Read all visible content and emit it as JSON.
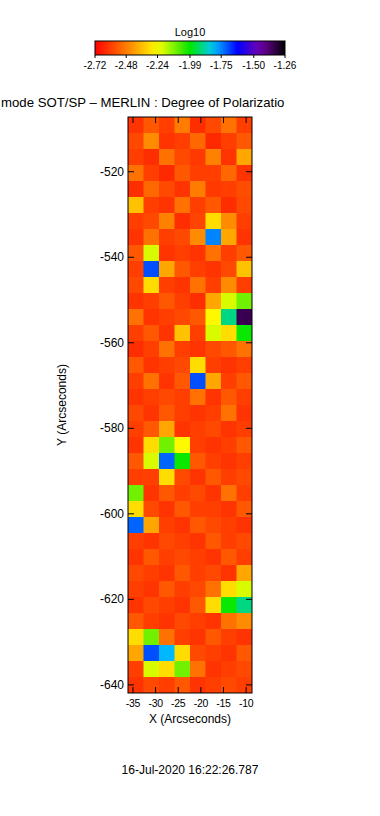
{
  "chart_data": {
    "type": "heatmap",
    "title": "mode SOT/SP – MERLIN : Degree of Polarizatio",
    "xlabel": "X (Arcseconds)",
    "ylabel": "Y (Arcseconds)",
    "annotations": [
      "16-Jul-2020 16:22:26.787"
    ],
    "xlim": [
      -36.1,
      -8.7
    ],
    "ylim": [
      -641.9,
      -507.2
    ],
    "xticks": [
      -35,
      -30,
      -25,
      -20,
      -15,
      -10
    ],
    "yticks": [
      -520,
      -540,
      -560,
      -580,
      -600,
      -620,
      -640
    ],
    "colorbar": {
      "label": "Log10",
      "range": [
        -2.72,
        -1.26
      ],
      "ticks": [
        -2.72,
        -2.48,
        -2.24,
        -1.99,
        -1.75,
        {
          "value": -1.5,
          "label": "-1.50"
        },
        -1.26
      ]
    },
    "z": [
      [
        -2.62,
        -2.55,
        -2.6,
        -2.48,
        -2.63,
        -2.58,
        -2.5,
        -2.6
      ],
      [
        -2.58,
        -2.45,
        -2.62,
        -2.6,
        -2.52,
        -2.64,
        -2.6,
        -2.55
      ],
      [
        -2.6,
        -2.63,
        -2.5,
        -2.58,
        -2.61,
        -2.47,
        -2.62,
        -2.4
      ],
      [
        -2.5,
        -2.6,
        -2.64,
        -2.55,
        -2.6,
        -2.6,
        -2.52,
        -2.62
      ],
      [
        -2.63,
        -2.52,
        -2.58,
        -2.62,
        -2.48,
        -2.61,
        -2.6,
        -2.57
      ],
      [
        -2.35,
        -2.6,
        -2.62,
        -2.5,
        -2.6,
        -2.55,
        -2.63,
        -2.58
      ],
      [
        -2.6,
        -2.58,
        -2.47,
        -2.63,
        -2.59,
        -2.3,
        -2.45,
        -2.6
      ],
      [
        -2.62,
        -2.5,
        -2.6,
        -2.58,
        -2.45,
        -1.75,
        -2.4,
        -2.62
      ],
      [
        -2.55,
        -2.2,
        -2.62,
        -2.6,
        -2.62,
        -2.5,
        -2.6,
        -2.55
      ],
      [
        -2.6,
        -1.7,
        -2.4,
        -2.55,
        -2.6,
        -2.62,
        -2.58,
        -2.35
      ],
      [
        -2.58,
        -2.3,
        -2.6,
        -2.62,
        -2.5,
        -2.6,
        -2.45,
        -2.6
      ],
      [
        -2.62,
        -2.6,
        -2.55,
        -2.6,
        -2.63,
        -2.4,
        -2.2,
        -2.1
      ],
      [
        -2.5,
        -2.62,
        -2.6,
        -2.58,
        -2.55,
        -2.25,
        -1.9,
        -1.35
      ],
      [
        -2.6,
        -2.55,
        -2.62,
        -2.35,
        -2.6,
        -2.2,
        -2.3,
        -2.0
      ],
      [
        -2.63,
        -2.6,
        -2.5,
        -2.6,
        -2.62,
        -2.58,
        -2.55,
        -2.5
      ],
      [
        -2.55,
        -2.62,
        -2.6,
        -2.58,
        -2.3,
        -2.6,
        -2.62,
        -2.6
      ],
      [
        -2.6,
        -2.5,
        -2.62,
        -2.55,
        -1.7,
        -2.4,
        -2.6,
        -2.55
      ],
      [
        -2.62,
        -2.6,
        -2.58,
        -2.6,
        -2.5,
        -2.62,
        -2.55,
        -2.6
      ],
      [
        -2.58,
        -2.62,
        -2.55,
        -2.6,
        -2.62,
        -2.6,
        -2.5,
        -2.62
      ],
      [
        -2.6,
        -2.55,
        -2.4,
        -2.62,
        -2.6,
        -2.58,
        -2.62,
        -2.6
      ],
      [
        -2.62,
        -2.3,
        -2.1,
        -2.25,
        -2.6,
        -2.62,
        -2.6,
        -2.55
      ],
      [
        -2.55,
        -2.2,
        -1.72,
        -2.0,
        -2.55,
        -2.6,
        -2.62,
        -2.6
      ],
      [
        -2.6,
        -2.6,
        -2.3,
        -2.58,
        -2.62,
        -2.55,
        -2.6,
        -2.58
      ],
      [
        -2.1,
        -2.62,
        -2.55,
        -2.6,
        -2.58,
        -2.62,
        -2.5,
        -2.6
      ],
      [
        -2.3,
        -2.58,
        -2.62,
        -2.55,
        -2.6,
        -2.6,
        -2.62,
        -2.55
      ],
      [
        -1.72,
        -2.4,
        -2.6,
        -2.62,
        -2.55,
        -2.58,
        -2.6,
        -2.62
      ],
      [
        -2.6,
        -2.62,
        -2.58,
        -2.6,
        -2.62,
        -2.55,
        -2.6,
        -2.58
      ],
      [
        -2.62,
        -2.55,
        -2.6,
        -2.58,
        -2.6,
        -2.62,
        -2.55,
        -2.6
      ],
      [
        -2.58,
        -2.6,
        -2.62,
        -2.55,
        -2.6,
        -2.58,
        -2.62,
        -2.4
      ],
      [
        -2.6,
        -2.62,
        -2.55,
        -2.6,
        -2.58,
        -2.5,
        -2.3,
        -2.2
      ],
      [
        -2.62,
        -2.58,
        -2.6,
        -2.62,
        -2.55,
        -2.3,
        -2.0,
        -1.9
      ],
      [
        -2.55,
        -2.6,
        -2.62,
        -2.58,
        -2.6,
        -2.62,
        -2.5,
        -2.45
      ],
      [
        -2.3,
        -2.1,
        -2.5,
        -2.6,
        -2.62,
        -2.55,
        -2.6,
        -2.62
      ],
      [
        -2.4,
        -1.7,
        -1.8,
        -2.3,
        -2.58,
        -2.6,
        -2.62,
        -2.55
      ],
      [
        -2.6,
        -2.2,
        -2.3,
        -2.1,
        -2.5,
        -2.62,
        -2.6,
        -2.58
      ],
      [
        -2.62,
        -2.58,
        -2.6,
        -2.55,
        -2.62,
        -2.6,
        -2.58,
        -2.6
      ]
    ]
  }
}
